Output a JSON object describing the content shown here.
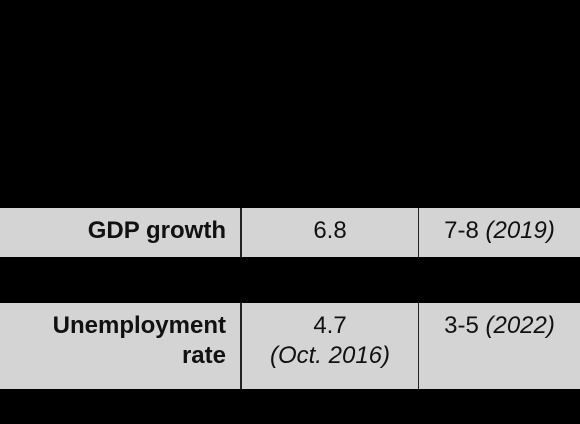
{
  "table": {
    "rows": [
      {
        "label": "GDP growth",
        "current": {
          "value": "6.8"
        },
        "target": {
          "value": "7-8",
          "note": "(2019)"
        }
      },
      {
        "label": "Unemployment rate",
        "current": {
          "value": "4.7",
          "note": "(Oct. 2016)"
        },
        "target": {
          "value": "3-5",
          "note": "(2022)"
        }
      }
    ]
  }
}
